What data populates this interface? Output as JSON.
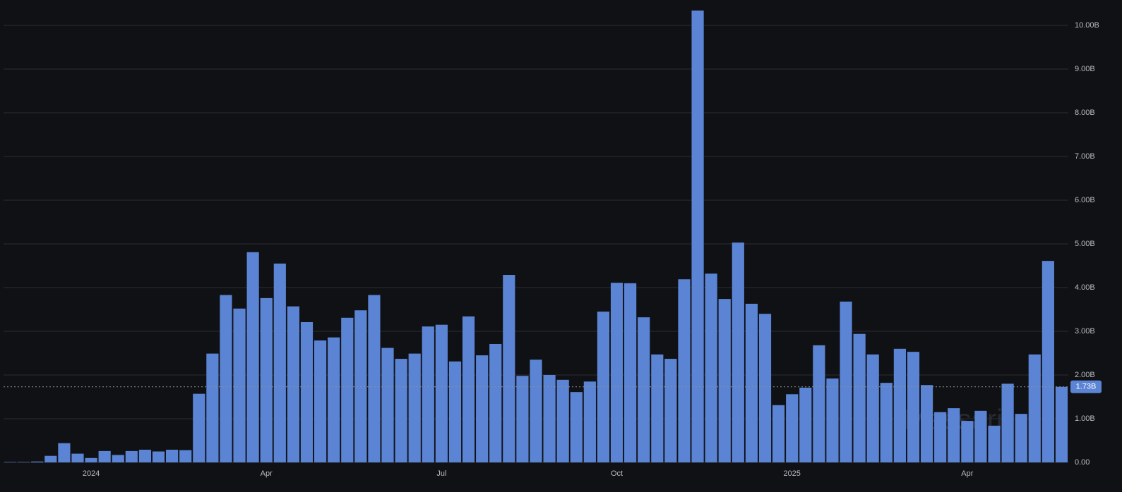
{
  "chart_data": {
    "type": "bar",
    "watermark": "Messari",
    "categories": [
      null,
      null,
      null,
      null,
      null,
      null,
      "2024",
      null,
      null,
      null,
      null,
      null,
      null,
      null,
      null,
      null,
      null,
      null,
      null,
      "Apr",
      null,
      null,
      null,
      null,
      null,
      null,
      null,
      null,
      null,
      null,
      null,
      null,
      "Jul",
      null,
      null,
      null,
      null,
      null,
      null,
      null,
      null,
      null,
      null,
      null,
      null,
      "Oct",
      null,
      null,
      null,
      null,
      null,
      null,
      null,
      null,
      null,
      null,
      null,
      null,
      "2025",
      null,
      null,
      null,
      null,
      null,
      null,
      null,
      null,
      null,
      null,
      null,
      null,
      "Apr",
      null,
      null,
      null,
      null,
      null,
      null,
      null
    ],
    "values": [
      0.01,
      0.01,
      0.02,
      0.15,
      0.44,
      0.2,
      0.1,
      0.26,
      0.17,
      0.26,
      0.29,
      0.25,
      0.29,
      0.28,
      1.57,
      2.49,
      3.83,
      3.52,
      4.81,
      3.76,
      4.55,
      3.57,
      3.21,
      2.79,
      2.86,
      3.31,
      3.48,
      3.83,
      2.62,
      2.37,
      2.49,
      3.11,
      3.15,
      2.31,
      3.34,
      2.45,
      2.71,
      4.29,
      1.98,
      2.35,
      2.0,
      1.89,
      1.61,
      1.85,
      3.45,
      4.11,
      4.1,
      3.32,
      2.47,
      2.37,
      4.19,
      10.34,
      4.32,
      3.74,
      5.03,
      3.63,
      3.4,
      1.31,
      1.56,
      1.71,
      2.68,
      1.92,
      3.68,
      2.94,
      2.47,
      1.82,
      2.6,
      2.53,
      1.77,
      1.15,
      1.24,
      0.95,
      1.18,
      0.84,
      1.8,
      1.11,
      2.47,
      4.61,
      1.73
    ],
    "value_labels": [
      null,
      null,
      null,
      null,
      null,
      null,
      null,
      null,
      null,
      null,
      null,
      null,
      null,
      null,
      null,
      null,
      null,
      null,
      null,
      null,
      null,
      null,
      null,
      null,
      null,
      null,
      null,
      null,
      null,
      null,
      null,
      null,
      null,
      null,
      null,
      null,
      null,
      null,
      null,
      null,
      null,
      null,
      null,
      null,
      null,
      null,
      null,
      null,
      null,
      null,
      null,
      null,
      null,
      null,
      null,
      null,
      null,
      null,
      null,
      null,
      null,
      null,
      null,
      null,
      null,
      null,
      null,
      null,
      null,
      null,
      null,
      null,
      null,
      null,
      null,
      null,
      null,
      null,
      "1.73B"
    ],
    "color": "#5b84d4",
    "ylim": [
      0,
      10.5
    ],
    "yticks": [
      {
        "value": 0,
        "label": "0.00"
      },
      {
        "value": 1,
        "label": "1.00B"
      },
      {
        "value": 2,
        "label": "2.00B"
      },
      {
        "value": 3,
        "label": "3.00B"
      },
      {
        "value": 4,
        "label": "4.00B"
      },
      {
        "value": 5,
        "label": "5.00B"
      },
      {
        "value": 6,
        "label": "6.00B"
      },
      {
        "value": 7,
        "label": "7.00B"
      },
      {
        "value": 8,
        "label": "8.00B"
      },
      {
        "value": 9,
        "label": "9.00B"
      },
      {
        "value": 10,
        "label": "10.00B"
      }
    ],
    "grid": true
  }
}
